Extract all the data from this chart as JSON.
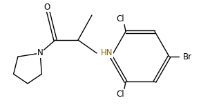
{
  "bg_color": "#ffffff",
  "line_color": "#000000",
  "label_O": "O",
  "label_N": "N",
  "label_HN": "HN",
  "label_Cl1": "Cl",
  "label_Cl2": "Cl",
  "label_Br": "Br",
  "hn_color": "#8B6914",
  "atom_color": "#000000",
  "font_size_atoms": 8.5,
  "font_size_labels": 8.5,
  "figsize": [
    3.04,
    1.55
  ],
  "dpi": 100,
  "lw": 1.0
}
